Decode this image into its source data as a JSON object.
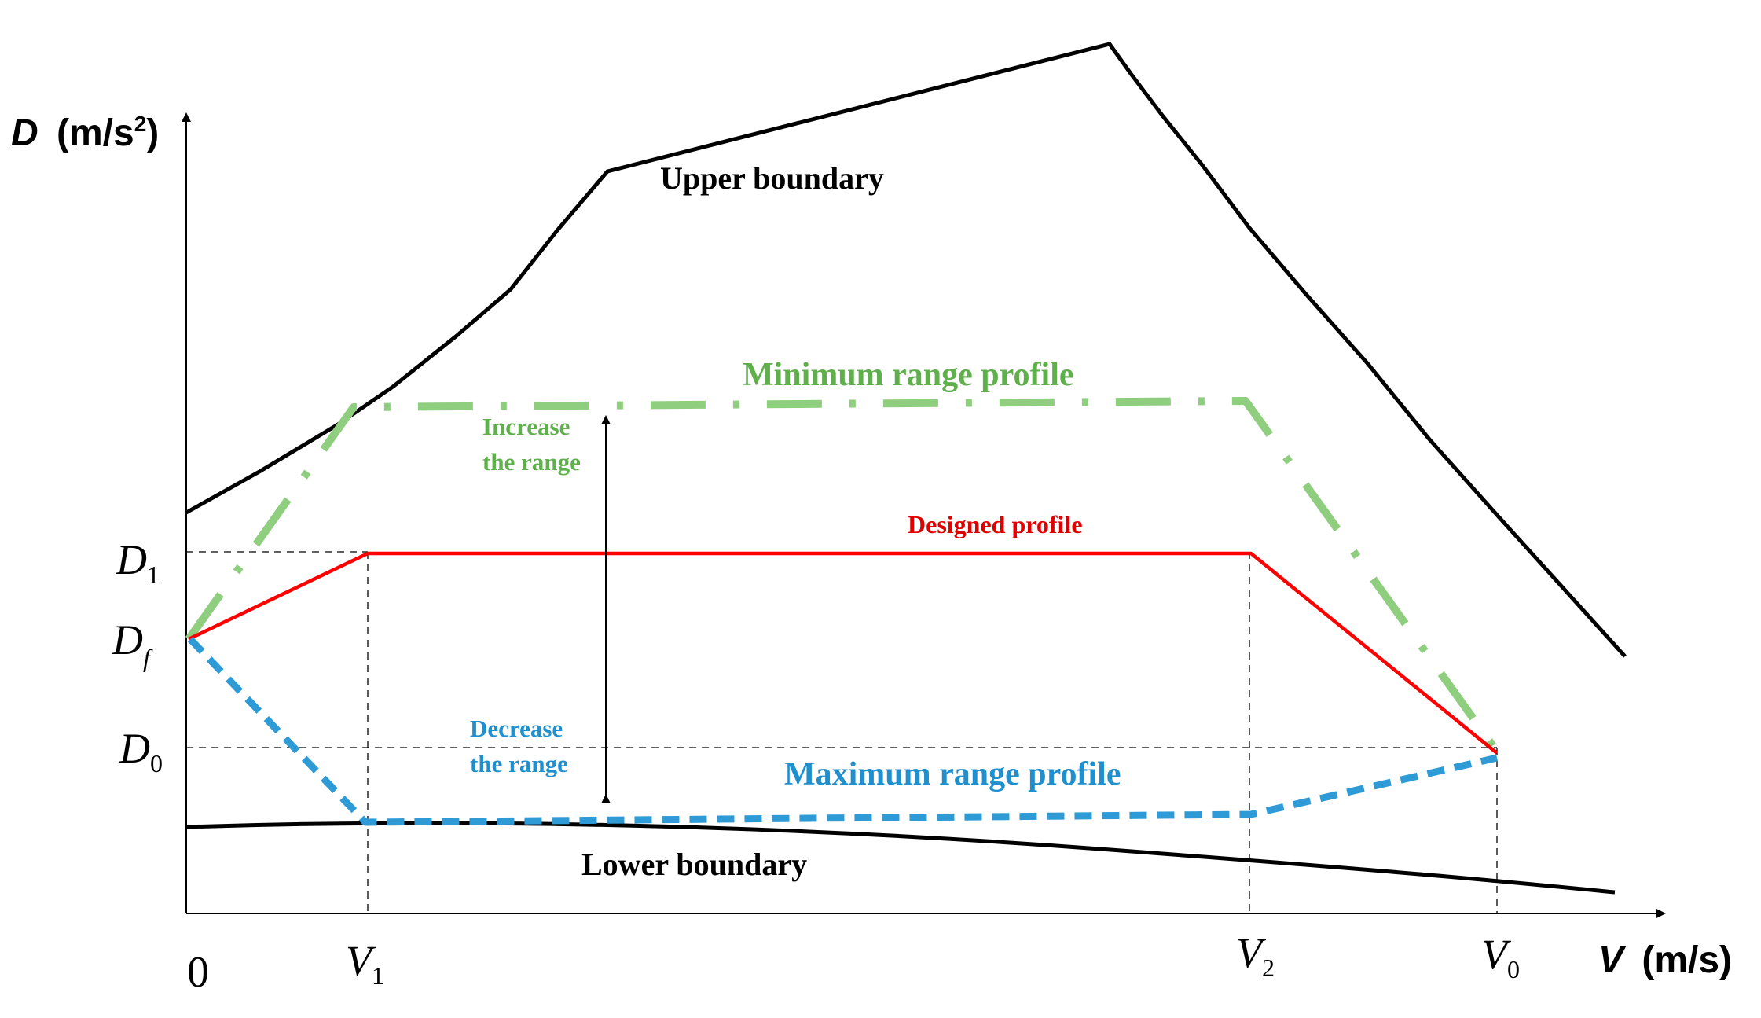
{
  "axes": {
    "y_label": "D",
    "y_unit": "(m/s",
    "y_unit_exp": "2",
    "y_unit_close": ")",
    "x_label": "V",
    "x_unit": "(m/s)",
    "origin": "0"
  },
  "ticks": {
    "y": [
      {
        "main": "D",
        "sub": "1"
      },
      {
        "main": "D",
        "sub": "f"
      },
      {
        "main": "D",
        "sub": "0"
      }
    ],
    "x": [
      {
        "main": "V",
        "sub": "1"
      },
      {
        "main": "V",
        "sub": "2"
      },
      {
        "main": "V",
        "sub": "0"
      }
    ]
  },
  "labels": {
    "upper_boundary": "Upper boundary",
    "lower_boundary": "Lower boundary",
    "min_range": "Minimum range profile",
    "max_range": "Maximum range profile",
    "designed": "Designed  profile",
    "increase_1": "Increase",
    "increase_2": "the range",
    "decrease_1": "Decrease",
    "decrease_2": "the range"
  },
  "colors": {
    "boundary": "#000000",
    "min_range": "#8fce7e",
    "designed": "#ff0000",
    "max_range": "#2e9bd6",
    "min_label": "#5fb04c",
    "max_label": "#1f8fce",
    "designed_label": "#e00000"
  }
}
